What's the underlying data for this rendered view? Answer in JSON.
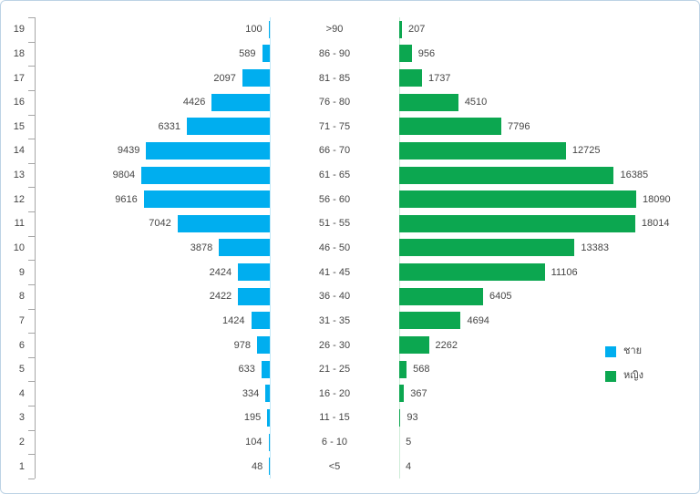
{
  "chart_data": {
    "type": "bar",
    "subtype": "population_pyramid",
    "title": "",
    "orientation": "horizontal",
    "grid": false,
    "value_axis_max": 18090,
    "colors": {
      "male": "#00aeef",
      "female": "#0ca750"
    },
    "legend": {
      "position": "right",
      "items": [
        {
          "label": "ชาย",
          "series": "male",
          "color": "#00aeef"
        },
        {
          "label": "หญิง",
          "series": "female",
          "color": "#0ca750"
        }
      ]
    },
    "row_axis_ticks": [
      1,
      2,
      3,
      4,
      5,
      6,
      7,
      8,
      9,
      10,
      11,
      12,
      13,
      14,
      15,
      16,
      17,
      18,
      19
    ],
    "rows": [
      {
        "index": 19,
        "age": ">90",
        "male": 100,
        "female": 207
      },
      {
        "index": 18,
        "age": "86 - 90",
        "male": 589,
        "female": 956
      },
      {
        "index": 17,
        "age": "81 - 85",
        "male": 2097,
        "female": 1737
      },
      {
        "index": 16,
        "age": "76 - 80",
        "male": 4426,
        "female": 4510
      },
      {
        "index": 15,
        "age": "71 - 75",
        "male": 6331,
        "female": 7796
      },
      {
        "index": 14,
        "age": "66 - 70",
        "male": 9439,
        "female": 12725
      },
      {
        "index": 13,
        "age": "61 - 65",
        "male": 9804,
        "female": 16385
      },
      {
        "index": 12,
        "age": "56 - 60",
        "male": 9616,
        "female": 18090
      },
      {
        "index": 11,
        "age": "51 - 55",
        "male": 7042,
        "female": 18014
      },
      {
        "index": 10,
        "age": "46 - 50",
        "male": 3878,
        "female": 13383
      },
      {
        "index": 9,
        "age": "41 - 45",
        "male": 2424,
        "female": 11106
      },
      {
        "index": 8,
        "age": "36 - 40",
        "male": 2422,
        "female": 6405
      },
      {
        "index": 7,
        "age": "31 - 35",
        "male": 1424,
        "female": 4694
      },
      {
        "index": 6,
        "age": "26 - 30",
        "male": 978,
        "female": 2262
      },
      {
        "index": 5,
        "age": "21 - 25",
        "male": 633,
        "female": 568
      },
      {
        "index": 4,
        "age": "16 - 20",
        "male": 334,
        "female": 367
      },
      {
        "index": 3,
        "age": "11 - 15",
        "male": 195,
        "female": 93
      },
      {
        "index": 2,
        "age": "6 - 10",
        "male": 104,
        "female": 5
      },
      {
        "index": 1,
        "age": "<5",
        "male": 48,
        "female": 4
      }
    ]
  }
}
